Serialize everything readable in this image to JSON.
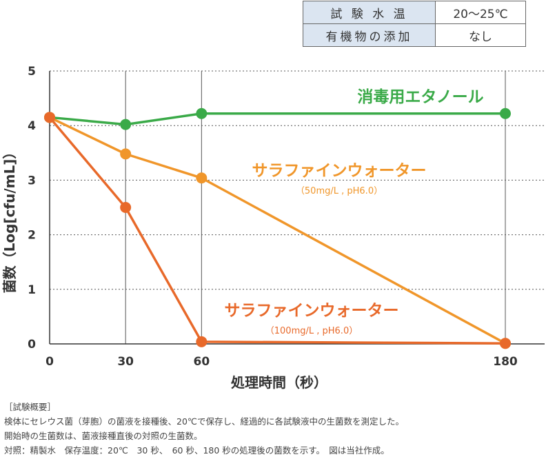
{
  "conditions": {
    "rows": [
      {
        "label": "試 験 水 温",
        "value": "20〜25℃"
      },
      {
        "label": "有機物の添加",
        "value": "なし"
      }
    ]
  },
  "chart_data": {
    "type": "line",
    "xlabel": "処理時間（秒）",
    "ylabel": "菌数（Log[cfu/mL]）",
    "x_ticks": [
      "0",
      "30",
      "60",
      "180"
    ],
    "x_positions": [
      0,
      30,
      60,
      180
    ],
    "ylim": [
      0,
      5
    ],
    "y_ticks": [
      "0",
      "1",
      "2",
      "3",
      "4",
      "5"
    ],
    "grid": true,
    "series": [
      {
        "name": "消毒用エタノール",
        "color": "#3aaa48",
        "x": [
          0,
          30,
          60,
          180
        ],
        "values": [
          4.15,
          4.02,
          4.22,
          4.22
        ]
      },
      {
        "name": "サラファインウォーター",
        "sublabel": "（50mg/L , pH6.0）",
        "color": "#f0962a",
        "x": [
          0,
          30,
          60,
          180
        ],
        "values": [
          4.15,
          3.48,
          3.04,
          0.01
        ]
      },
      {
        "name": "サラファインウォーター",
        "sublabel": "（100mg/L , pH6.0）",
        "color": "#e8692a",
        "x": [
          0,
          30,
          60,
          180
        ],
        "values": [
          4.15,
          2.5,
          0.04,
          0.01
        ]
      }
    ]
  },
  "notes": [
    "［試験概要］",
    "検体にセレウス菌（芽胞）の菌液を接種後、20℃で保存し、経過的に各試験液中の生菌数を測定した。",
    "開始時の生菌数は、菌液接種直後の対照の生菌数。",
    "対照：精製水　保存温度：20℃　30 秒、　60 秒、180 秒の処理後の菌数を示す。　図は当社作成。"
  ]
}
